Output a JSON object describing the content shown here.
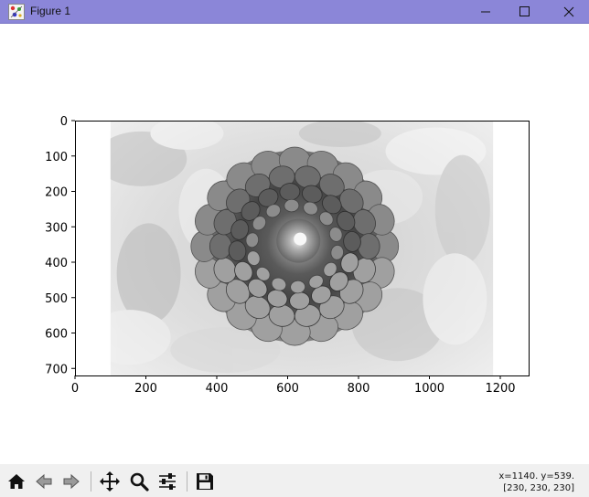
{
  "window": {
    "title": "Figure 1",
    "controls": [
      "minimize",
      "maximize",
      "close"
    ],
    "icon": "figure-app-icon"
  },
  "plot": {
    "image": {
      "description_icon": "dahlia-grayscale-image",
      "extent_x": [
        100,
        1180
      ],
      "extent_y": [
        0,
        720
      ]
    },
    "xlim": [
      0,
      1280
    ],
    "ylim": [
      720,
      0
    ],
    "xticks": [
      "0",
      "200",
      "400",
      "600",
      "800",
      "1000",
      "1200"
    ],
    "xtick_values": [
      0,
      200,
      400,
      600,
      800,
      1000,
      1200
    ],
    "yticks": [
      "0",
      "100",
      "200",
      "300",
      "400",
      "500",
      "600",
      "700"
    ],
    "ytick_values": [
      0,
      100,
      200,
      300,
      400,
      500,
      600,
      700
    ]
  },
  "toolbar": {
    "buttons": [
      {
        "name": "home-button",
        "icon": "home-icon"
      },
      {
        "name": "back-button",
        "icon": "back-arrow-icon"
      },
      {
        "name": "forward-button",
        "icon": "forward-arrow-icon"
      },
      {
        "name": "pan-button",
        "icon": "move-icon"
      },
      {
        "name": "zoom-button",
        "icon": "magnifier-icon"
      },
      {
        "name": "configure-subplots-button",
        "icon": "sliders-icon"
      },
      {
        "name": "save-button",
        "icon": "floppy-disk-icon"
      }
    ],
    "coords_xy": "x=1140. y=539.",
    "coords_value": "[230, 230, 230]"
  }
}
